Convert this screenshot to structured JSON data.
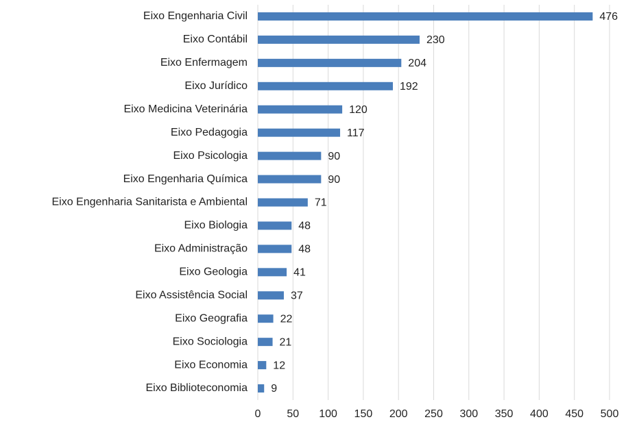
{
  "chart_data": {
    "type": "hbar",
    "categories": [
      "Eixo Engenharia Civil",
      "Eixo Contábil",
      "Eixo Enfermagem",
      "Eixo Jurídico",
      "Eixo Medicina Veterinária",
      "Eixo Pedagogia",
      "Eixo Psicologia",
      "Eixo Engenharia Química",
      "Eixo Engenharia Sanitarista e Ambiental",
      "Eixo Biologia",
      "Eixo Administração",
      "Eixo Geologia",
      "Eixo Assistência Social",
      "Eixo Geografia",
      "Eixo Sociologia",
      "Eixo Economia",
      "Eixo Biblioteconomia"
    ],
    "values": [
      476,
      230,
      204,
      192,
      120,
      117,
      90,
      90,
      71,
      48,
      48,
      41,
      37,
      22,
      21,
      12,
      9
    ],
    "color": "#4a7ebb",
    "xlim": [
      0,
      500
    ],
    "xticks": [
      0,
      50,
      100,
      150,
      200,
      250,
      300,
      350,
      400,
      450,
      500
    ],
    "grid": true
  }
}
